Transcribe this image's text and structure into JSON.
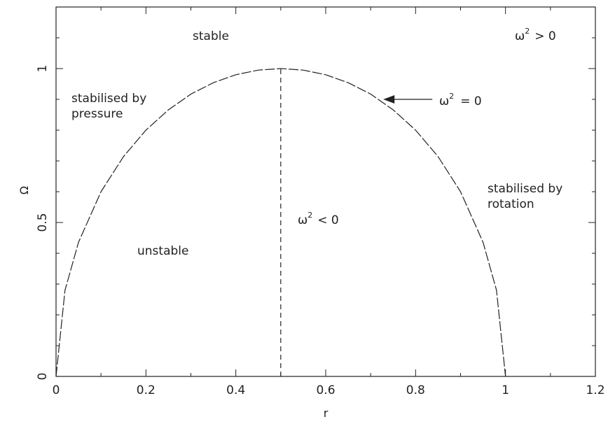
{
  "chart_data": {
    "type": "line",
    "title": "",
    "xlabel": "r",
    "ylabel": "Ω",
    "xlim": [
      0,
      1.2
    ],
    "ylim": [
      0,
      1.2
    ],
    "x_ticks": [
      "0",
      "0.2",
      "0.4",
      "0.6",
      "0.8",
      "1",
      "1.2"
    ],
    "y_ticks": [
      "0",
      "0.5",
      "1"
    ],
    "grid": false,
    "series": [
      {
        "name": "ω² = 0",
        "style": "dashed",
        "curve": "Ω = 2·sqrt(r(1−r))",
        "x": [
          0,
          0.02,
          0.05,
          0.1,
          0.15,
          0.2,
          0.25,
          0.3,
          0.35,
          0.4,
          0.45,
          0.5,
          0.55,
          0.6,
          0.65,
          0.7,
          0.75,
          0.8,
          0.85,
          0.9,
          0.95,
          0.98,
          1.0
        ],
        "y": [
          0,
          0.28,
          0.436,
          0.6,
          0.714,
          0.8,
          0.866,
          0.917,
          0.954,
          0.98,
          0.995,
          1.0,
          0.995,
          0.98,
          0.954,
          0.917,
          0.866,
          0.8,
          0.714,
          0.6,
          0.436,
          0.28,
          0
        ]
      },
      {
        "name": "r = 0.5",
        "style": "dashed",
        "x": [
          0.5,
          0.5
        ],
        "y": [
          0,
          1.0
        ]
      }
    ],
    "annotations": {
      "stable": "stable",
      "omega_pos": "> 0",
      "omega_zero": "= 0",
      "omega_neg": "< 0",
      "omega_symbol": "ω",
      "sup": "2",
      "pressure_1": "stabilised by",
      "pressure_2": "pressure",
      "rotation_1": "stabilised by",
      "rotation_2": "rotation",
      "unstable": "unstable"
    }
  }
}
